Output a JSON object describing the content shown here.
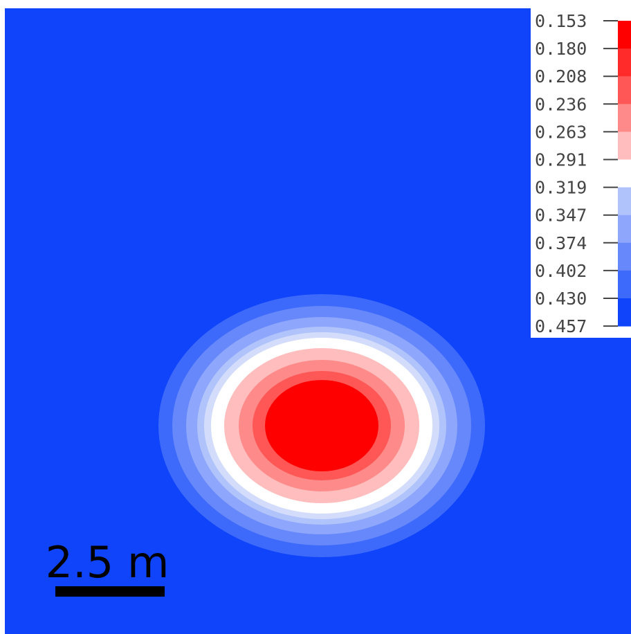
{
  "chart_data": {
    "type": "heatmap",
    "title": "",
    "xlabel": "",
    "ylabel": "",
    "colorbar": {
      "ticks": [
        "0.153",
        "0.180",
        "0.208",
        "0.236",
        "0.263",
        "0.291",
        "0.319",
        "0.347",
        "0.374",
        "0.402",
        "0.430",
        "0.457"
      ],
      "min": 0.153,
      "max": 0.457,
      "levels": [
        {
          "value": 0.153,
          "color": "#ff0000"
        },
        {
          "value": 0.18,
          "color": "#ff2b2b"
        },
        {
          "value": 0.208,
          "color": "#ff5656"
        },
        {
          "value": 0.236,
          "color": "#ff8a8a"
        },
        {
          "value": 0.263,
          "color": "#ffbdbd"
        },
        {
          "value": 0.291,
          "color": "#ffffff"
        },
        {
          "value": 0.319,
          "color": "#d3ddfb"
        },
        {
          "value": 0.347,
          "color": "#b0c3fb"
        },
        {
          "value": 0.374,
          "color": "#8ea6fb"
        },
        {
          "value": 0.402,
          "color": "#6688fb"
        },
        {
          "value": 0.43,
          "color": "#3d6afb"
        },
        {
          "value": 0.457,
          "color": "#0f44fb"
        }
      ],
      "placement": "top-right"
    },
    "field": {
      "background_value": 0.457,
      "min_value": 0.153,
      "shape": "elliptical minimum"
    },
    "scale_bar": {
      "label": "2.5 m",
      "length_m": 2.5
    }
  },
  "colors": {
    "background": "#0f44fb",
    "scale_bar": "#000000"
  }
}
